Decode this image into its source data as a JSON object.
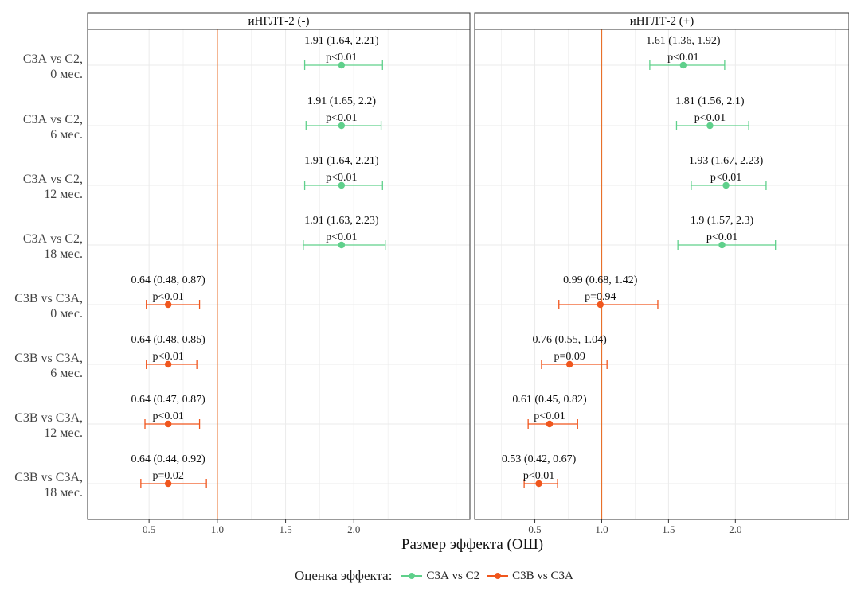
{
  "chart_data": {
    "type": "forest",
    "xlabel": "Размер эффекта (ОШ)",
    "reference_line": 1.0,
    "xlim": [
      0.05,
      2.85
    ],
    "xticks": [
      0.5,
      1.0,
      1.5,
      2.0
    ],
    "xtick_labels": [
      "0.5",
      "1.0",
      "1.5",
      "2.0"
    ],
    "grid": true,
    "rows": [
      {
        "label": [
          "С3А vs С2,",
          "0 мес."
        ],
        "series": 0
      },
      {
        "label": [
          "С3А vs С2,",
          "6 мес."
        ],
        "series": 0
      },
      {
        "label": [
          "С3А vs С2,",
          "12 мес."
        ],
        "series": 0
      },
      {
        "label": [
          "С3А vs С2,",
          "18 мес."
        ],
        "series": 0
      },
      {
        "label": [
          "С3В vs С3А,",
          "0 мес."
        ],
        "series": 1
      },
      {
        "label": [
          "С3В vs С3А,",
          "6 мес."
        ],
        "series": 1
      },
      {
        "label": [
          "С3В vs С3А,",
          "12 мес."
        ],
        "series": 1
      },
      {
        "label": [
          "С3В vs С3А,",
          "18 мес."
        ],
        "series": 1
      }
    ],
    "panels": [
      {
        "title": "иНГЛТ-2 (-)",
        "estimates": [
          {
            "or": 1.91,
            "lo": 1.64,
            "hi": 2.21,
            "ci_text": "1.91 (1.64, 2.21)",
            "p": "p<0.01"
          },
          {
            "or": 1.91,
            "lo": 1.65,
            "hi": 2.2,
            "ci_text": "1.91 (1.65, 2.2)",
            "p": "p<0.01"
          },
          {
            "or": 1.91,
            "lo": 1.64,
            "hi": 2.21,
            "ci_text": "1.91 (1.64, 2.21)",
            "p": "p<0.01"
          },
          {
            "or": 1.91,
            "lo": 1.63,
            "hi": 2.23,
            "ci_text": "1.91 (1.63, 2.23)",
            "p": "p<0.01"
          },
          {
            "or": 0.64,
            "lo": 0.48,
            "hi": 0.87,
            "ci_text": "0.64 (0.48, 0.87)",
            "p": "p<0.01"
          },
          {
            "or": 0.64,
            "lo": 0.48,
            "hi": 0.85,
            "ci_text": "0.64 (0.48, 0.85)",
            "p": "p<0.01"
          },
          {
            "or": 0.64,
            "lo": 0.47,
            "hi": 0.87,
            "ci_text": "0.64 (0.47, 0.87)",
            "p": "p<0.01"
          },
          {
            "or": 0.64,
            "lo": 0.44,
            "hi": 0.92,
            "ci_text": "0.64 (0.44, 0.92)",
            "p": "p=0.02"
          }
        ]
      },
      {
        "title": "иНГЛТ-2 (+)",
        "estimates": [
          {
            "or": 1.61,
            "lo": 1.36,
            "hi": 1.92,
            "ci_text": "1.61 (1.36, 1.92)",
            "p": "p<0.01"
          },
          {
            "or": 1.81,
            "lo": 1.56,
            "hi": 2.1,
            "ci_text": "1.81 (1.56, 2.1)",
            "p": "p<0.01"
          },
          {
            "or": 1.93,
            "lo": 1.67,
            "hi": 2.23,
            "ci_text": "1.93 (1.67, 2.23)",
            "p": "p<0.01"
          },
          {
            "or": 1.9,
            "lo": 1.57,
            "hi": 2.3,
            "ci_text": "1.9 (1.57, 2.3)",
            "p": "p<0.01"
          },
          {
            "or": 0.99,
            "lo": 0.68,
            "hi": 1.42,
            "ci_text": "0.99 (0.68, 1.42)",
            "p": "p=0.94"
          },
          {
            "or": 0.76,
            "lo": 0.55,
            "hi": 1.04,
            "ci_text": "0.76 (0.55, 1.04)",
            "p": "p=0.09"
          },
          {
            "or": 0.61,
            "lo": 0.45,
            "hi": 0.82,
            "ci_text": "0.61 (0.45, 0.82)",
            "p": "p<0.01"
          },
          {
            "or": 0.53,
            "lo": 0.42,
            "hi": 0.67,
            "ci_text": "0.53 (0.42, 0.67)",
            "p": "p<0.01"
          }
        ]
      }
    ],
    "series": [
      {
        "name": "С3А vs С2",
        "color": "#5fd08b"
      },
      {
        "name": "С3В vs С3А",
        "color": "#f0561d"
      }
    ],
    "legend": {
      "title": "Оценка эффекта:",
      "position": "bottom"
    },
    "colors": {
      "reference_line": "#e8702a",
      "grid": "#ebebeb",
      "panel_border": "#333333",
      "strip_bg": "#ffffff"
    }
  }
}
